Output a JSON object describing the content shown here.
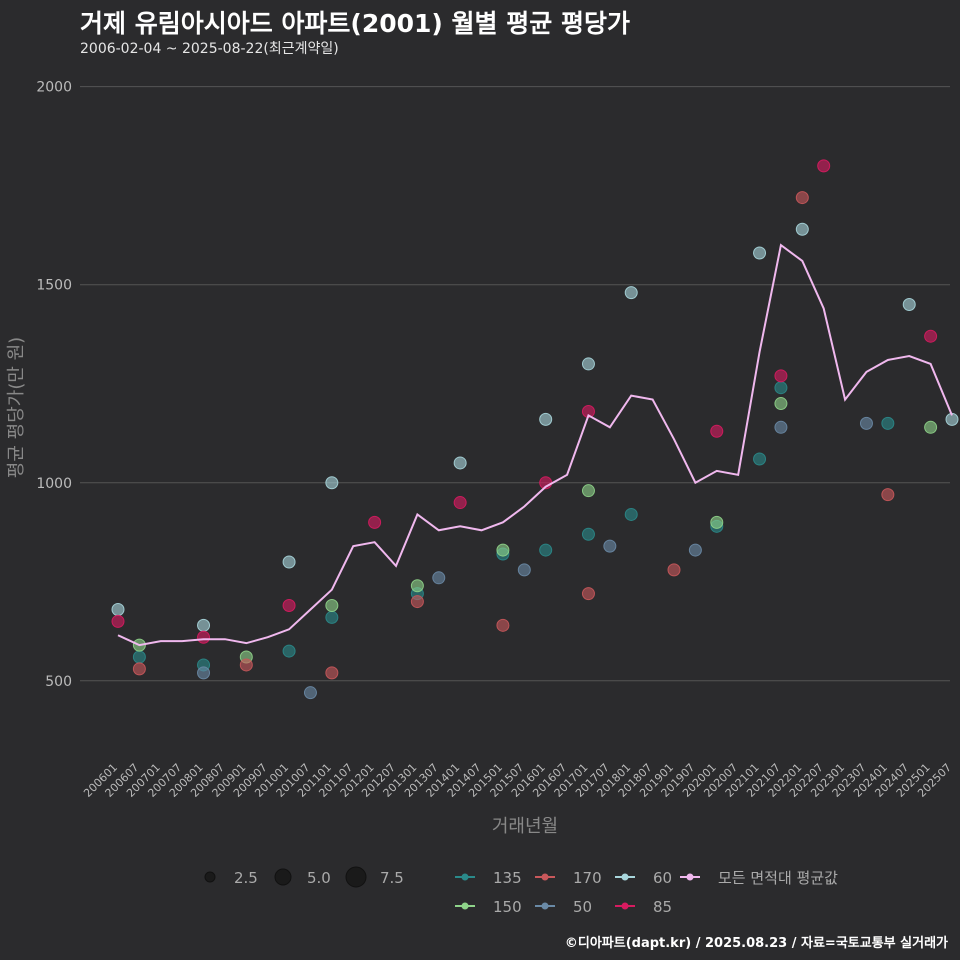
{
  "header": {
    "title": "거제 유림아시아드 아파트(2001) 월별 평균 평당가",
    "subtitle": "2006-02-04 ~ 2025-08-22(최근계약일)"
  },
  "footer": {
    "credit": "©디아파트(dapt.kr) / 2025.08.23 / 자료=국토교통부 실거래가"
  },
  "colors": {
    "background": "#2b2b2d",
    "grid": "#555555",
    "135": "#2a8a8a",
    "150": "#8fd48a",
    "170": "#c9585b",
    "50": "#6a8aa6",
    "60": "#a8d6dc",
    "85": "#d81b60",
    "avg": "#f0b8ee"
  },
  "chart_data": {
    "type": "scatter",
    "title": "거제 유림아시아드 아파트(2001) 월별 평균 평당가",
    "xlabel": "거래년월",
    "ylabel": "평균 평당가(만 원)",
    "ylim": [
      300,
      2080
    ],
    "y_ticks": [
      500,
      1000,
      1500,
      2000
    ],
    "x_tick_labels": [
      "200601",
      "200607",
      "200701",
      "200707",
      "200801",
      "200807",
      "200901",
      "200907",
      "201001",
      "201007",
      "201101",
      "201107",
      "201201",
      "201207",
      "201301",
      "201307",
      "201401",
      "201407",
      "201501",
      "201507",
      "201601",
      "201607",
      "201701",
      "201707",
      "201801",
      "201807",
      "201901",
      "201907",
      "202001",
      "202007",
      "202101",
      "202107",
      "202201",
      "202207",
      "202301",
      "202307",
      "202401",
      "202407",
      "202501",
      "202507"
    ],
    "size_legend": [
      "2.5",
      "5.0",
      "7.5"
    ],
    "series_legend": [
      {
        "key": "135",
        "label": "135"
      },
      {
        "key": "170",
        "label": "170"
      },
      {
        "key": "60",
        "label": "60"
      },
      {
        "key": "avg",
        "label": "모든 면적대 평균값"
      },
      {
        "key": "150",
        "label": "150"
      },
      {
        "key": "50",
        "label": "50"
      },
      {
        "key": "85",
        "label": "85"
      }
    ],
    "average_line": {
      "name": "모든 면적대 평균값",
      "points": [
        [
          "200601",
          615
        ],
        [
          "200607",
          590
        ],
        [
          "200701",
          600
        ],
        [
          "200707",
          600
        ],
        [
          "200801",
          605
        ],
        [
          "200807",
          605
        ],
        [
          "200901",
          595
        ],
        [
          "200907",
          610
        ],
        [
          "201001",
          630
        ],
        [
          "201007",
          680
        ],
        [
          "201101",
          730
        ],
        [
          "201107",
          840
        ],
        [
          "201201",
          850
        ],
        [
          "201207",
          790
        ],
        [
          "201301",
          920
        ],
        [
          "201307",
          880
        ],
        [
          "201401",
          890
        ],
        [
          "201407",
          880
        ],
        [
          "201501",
          900
        ],
        [
          "201507",
          940
        ],
        [
          "201601",
          990
        ],
        [
          "201607",
          1020
        ],
        [
          "201701",
          1170
        ],
        [
          "201707",
          1140
        ],
        [
          "201801",
          1220
        ],
        [
          "201807",
          1210
        ],
        [
          "201901",
          1110
        ],
        [
          "201907",
          1000
        ],
        [
          "202001",
          1030
        ],
        [
          "202007",
          1020
        ],
        [
          "202101",
          1330
        ],
        [
          "202107",
          1600
        ],
        [
          "202201",
          1560
        ],
        [
          "202207",
          1440
        ],
        [
          "202301",
          1210
        ],
        [
          "202307",
          1280
        ],
        [
          "202401",
          1310
        ],
        [
          "202407",
          1320
        ],
        [
          "202501",
          1300
        ],
        [
          "202507",
          1170
        ]
      ]
    },
    "scatter_series": [
      {
        "name": "135",
        "points": [
          [
            "200607",
            560
          ],
          [
            "200801",
            540
          ],
          [
            "201001",
            575
          ],
          [
            "201101",
            660
          ],
          [
            "201301",
            720
          ],
          [
            "201501",
            820
          ],
          [
            "201601",
            830
          ],
          [
            "201701",
            870
          ],
          [
            "201801",
            920
          ],
          [
            "202001",
            890
          ],
          [
            "202101",
            1060
          ],
          [
            "202107",
            1240
          ],
          [
            "202401",
            1150
          ]
        ]
      },
      {
        "name": "150",
        "points": [
          [
            "200607",
            590
          ],
          [
            "200901",
            560
          ],
          [
            "201101",
            690
          ],
          [
            "201301",
            740
          ],
          [
            "201501",
            830
          ],
          [
            "201701",
            980
          ],
          [
            "202001",
            900
          ],
          [
            "202107",
            1200
          ],
          [
            "202501",
            1140
          ]
        ]
      },
      {
        "name": "170",
        "points": [
          [
            "200607",
            530
          ],
          [
            "200901",
            540
          ],
          [
            "201101",
            520
          ],
          [
            "201301",
            700
          ],
          [
            "201501",
            640
          ],
          [
            "201701",
            720
          ],
          [
            "201901",
            780
          ],
          [
            "202201",
            1720
          ],
          [
            "202401",
            970
          ]
        ]
      },
      {
        "name": "50",
        "points": [
          [
            "200801",
            520
          ],
          [
            "201007",
            470
          ],
          [
            "201307",
            760
          ],
          [
            "201507",
            780
          ],
          [
            "201707",
            840
          ],
          [
            "201907",
            830
          ],
          [
            "202107",
            1140
          ],
          [
            "202307",
            1150
          ]
        ]
      },
      {
        "name": "60",
        "points": [
          [
            "200601",
            680
          ],
          [
            "200801",
            640
          ],
          [
            "201001",
            800
          ],
          [
            "201101",
            1000
          ],
          [
            "201401",
            1050
          ],
          [
            "201601",
            1160
          ],
          [
            "201701",
            1300
          ],
          [
            "201801",
            1480
          ],
          [
            "202101",
            1580
          ],
          [
            "202201",
            1640
          ],
          [
            "202407",
            1450
          ],
          [
            "202507",
            1160
          ]
        ]
      },
      {
        "name": "85",
        "points": [
          [
            "200601",
            650
          ],
          [
            "200801",
            610
          ],
          [
            "201001",
            690
          ],
          [
            "201201",
            900
          ],
          [
            "201401",
            950
          ],
          [
            "201601",
            1000
          ],
          [
            "201701",
            1180
          ],
          [
            "202001",
            1130
          ],
          [
            "202107",
            1270
          ],
          [
            "202207",
            1800
          ],
          [
            "202501",
            1370
          ]
        ]
      }
    ]
  }
}
